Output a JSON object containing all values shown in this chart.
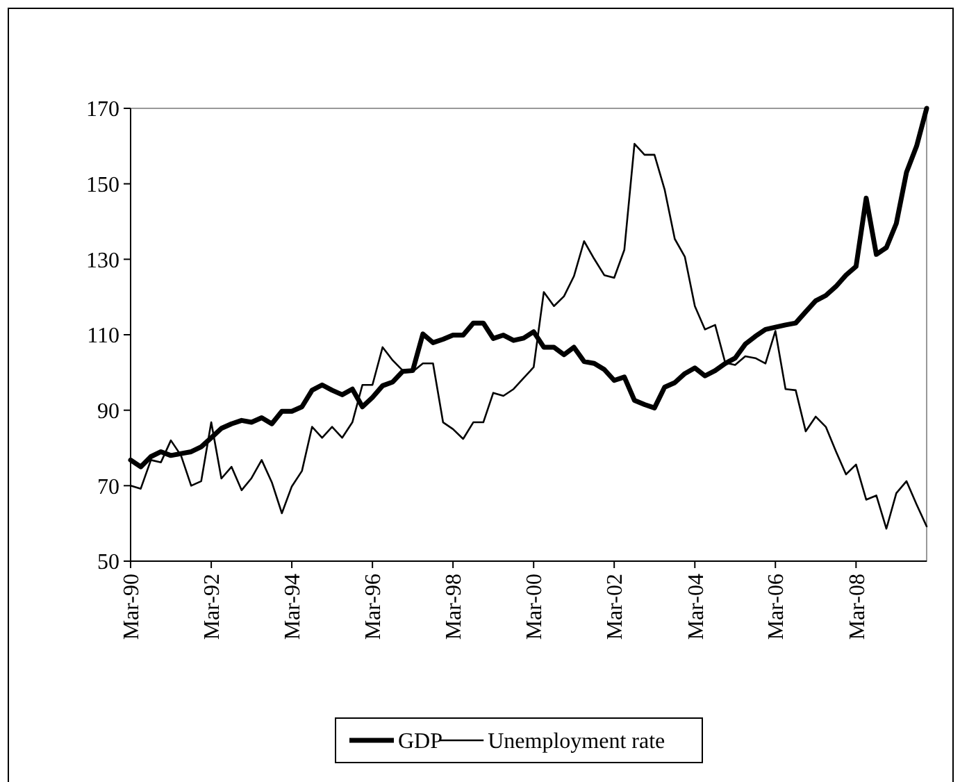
{
  "chart_data": {
    "type": "line",
    "x": [
      "1990-03",
      "1990-06",
      "1990-09",
      "1990-12",
      "1991-03",
      "1991-06",
      "1991-09",
      "1991-12",
      "1992-03",
      "1992-06",
      "1992-09",
      "1992-12",
      "1993-03",
      "1993-06",
      "1993-09",
      "1993-12",
      "1994-03",
      "1994-06",
      "1994-09",
      "1994-12",
      "1995-03",
      "1995-06",
      "1995-09",
      "1995-12",
      "1996-03",
      "1996-06",
      "1996-09",
      "1996-12",
      "1997-03",
      "1997-06",
      "1997-09",
      "1997-12",
      "1998-03",
      "1998-06",
      "1998-09",
      "1998-12",
      "1999-03",
      "1999-06",
      "1999-09",
      "1999-12",
      "2000-03",
      "2000-06",
      "2000-09",
      "2000-12",
      "2001-03",
      "2001-06",
      "2001-09",
      "2001-12",
      "2002-03",
      "2002-06",
      "2002-09",
      "2002-12",
      "2003-03",
      "2003-06",
      "2003-09",
      "2003-12",
      "2004-03",
      "2004-06",
      "2004-09",
      "2004-12",
      "2005-03",
      "2005-06",
      "2005-09",
      "2005-12",
      "2006-03",
      "2006-06",
      "2006-09",
      "2006-12",
      "2007-03",
      "2007-06",
      "2007-09",
      "2007-12",
      "2008-03",
      "2008-06",
      "2008-09",
      "2008-12",
      "2009-03",
      "2009-06",
      "2009-09",
      "2009-12"
    ],
    "series": [
      {
        "name": "GDP",
        "color": "#000000",
        "values": [
          76.8,
          75,
          77.7,
          79,
          78,
          78.5,
          79,
          80.3,
          82.7,
          85.2,
          86.4,
          87.3,
          86.8,
          88,
          86.4,
          89.7,
          89.7,
          90.9,
          95.3,
          96.7,
          95.3,
          94.1,
          95.6,
          90.9,
          93.4,
          96.5,
          97.5,
          100.3,
          100.5,
          110.2,
          107.9,
          108.8,
          109.9,
          109.9,
          113.1,
          113.1,
          109,
          109.9,
          108.5,
          109.1,
          110.8,
          106.7,
          106.7,
          104.7,
          106.7,
          102.9,
          102.4,
          100.8,
          97.9,
          98.8,
          92.6,
          91.5,
          90.6,
          96.1,
          97.3,
          99.7,
          101.2,
          99.1,
          100.5,
          102.4,
          103.8,
          107.5,
          109.6,
          111.4,
          112,
          112.6,
          113.1,
          116.1,
          119,
          120.4,
          122.8,
          125.8,
          128.1,
          146.2,
          131.3,
          133.1,
          139.5,
          153,
          160,
          170
        ]
      },
      {
        "name": "Unemployment rate",
        "color": "#000000",
        "values": [
          70,
          69.2,
          76.8,
          76.2,
          82,
          78,
          70,
          71.2,
          86.8,
          71.9,
          75,
          68.8,
          72,
          76.8,
          70.9,
          62.7,
          69.8,
          73.9,
          85.6,
          82.7,
          85.6,
          82.7,
          86.8,
          96.7,
          96.7,
          106.7,
          103.2,
          100.5,
          100.2,
          102.4,
          102.4,
          86.8,
          85,
          82.4,
          86.8,
          86.8,
          94.6,
          93.8,
          95.6,
          98.5,
          101.4,
          121.3,
          117.6,
          120.2,
          125.5,
          134.8,
          130.1,
          125.8,
          125.1,
          132.5,
          160.6,
          157.7,
          157.7,
          148.5,
          135.4,
          130.7,
          117.6,
          111.4,
          112.6,
          102.6,
          102,
          104.3,
          103.8,
          102.4,
          111,
          95.6,
          95.3,
          84.4,
          88.3,
          85.6,
          79.1,
          73,
          75.6,
          66.3,
          67.4,
          58.6,
          68,
          71.2,
          65,
          59.2
        ]
      }
    ],
    "xlim": [
      "1990-03",
      "2009-12"
    ],
    "xticks": [
      {
        "value": "1990-03",
        "label": "Mar-90"
      },
      {
        "value": "1992-03",
        "label": "Mar-92"
      },
      {
        "value": "1994-03",
        "label": "Mar-94"
      },
      {
        "value": "1996-03",
        "label": "Mar-96"
      },
      {
        "value": "1998-03",
        "label": "Mar-98"
      },
      {
        "value": "2000-03",
        "label": "Mar-00"
      },
      {
        "value": "2002-03",
        "label": "Mar-02"
      },
      {
        "value": "2004-03",
        "label": "Mar-04"
      },
      {
        "value": "2006-03",
        "label": "Mar-06"
      },
      {
        "value": "2008-03",
        "label": "Mar-08"
      }
    ],
    "ylim": [
      50,
      170
    ],
    "yticks": [
      50,
      70,
      90,
      110,
      130,
      150,
      170
    ],
    "grid": false,
    "legend": "bottom"
  }
}
